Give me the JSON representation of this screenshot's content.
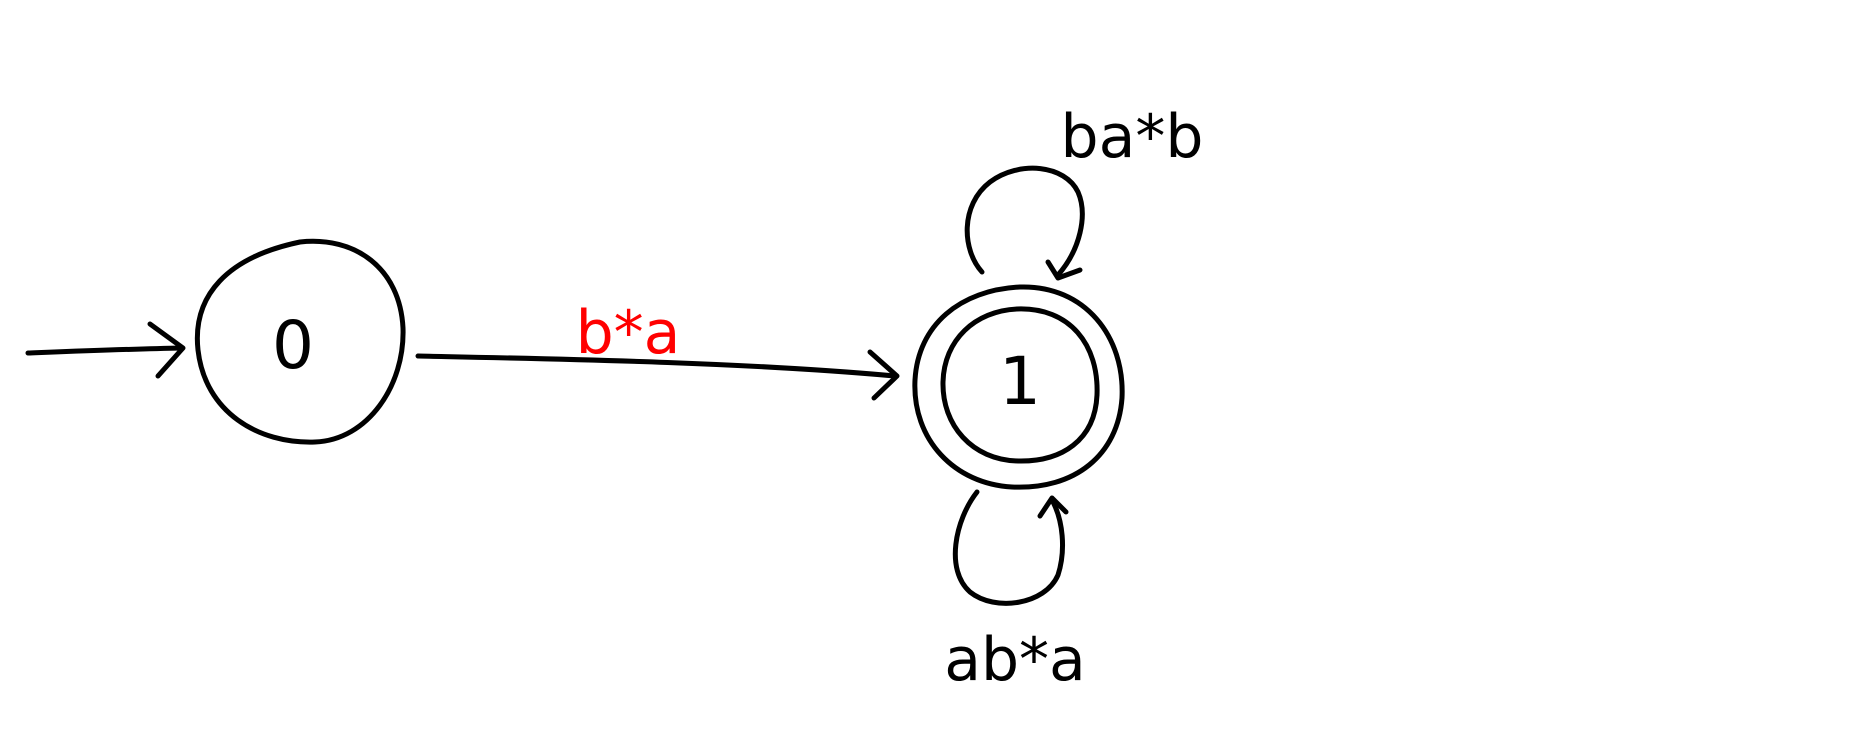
{
  "colors": {
    "stroke": "#000000",
    "highlight": "#ff0000",
    "background": "#ffffff"
  },
  "states": [
    {
      "id": "0",
      "label": "0",
      "start": true,
      "accepting": false
    },
    {
      "id": "1",
      "label": "1",
      "start": false,
      "accepting": true
    }
  ],
  "transitions": [
    {
      "from": "0",
      "to": "1",
      "label": "b*a",
      "color": "#ff0000"
    },
    {
      "from": "1",
      "to": "1",
      "label": "ba*b",
      "loop": "top"
    },
    {
      "from": "1",
      "to": "1",
      "label": "ab*a",
      "loop": "bottom"
    }
  ]
}
